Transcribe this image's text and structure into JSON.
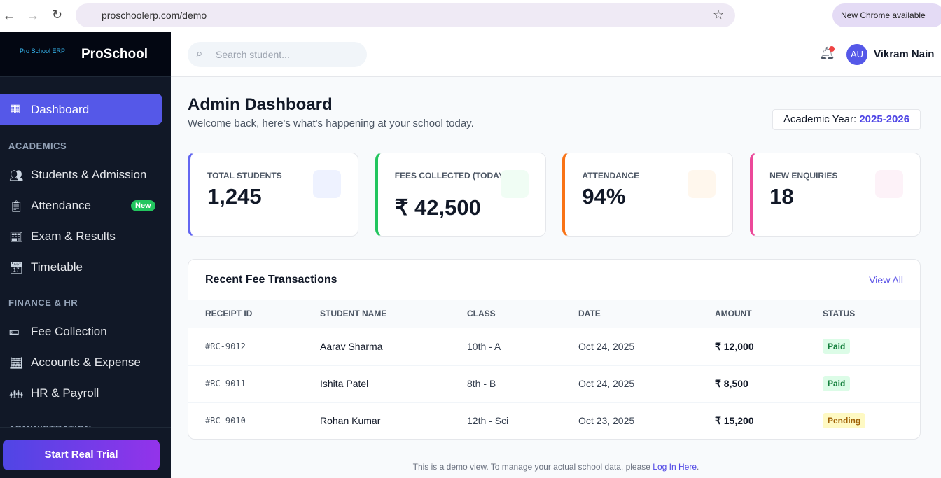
{
  "browser": {
    "url": "proschoolerp.com/demo",
    "update": "New Chrome available"
  },
  "sidebar": {
    "brand": "ProSchool",
    "logo": "Pro School ERP",
    "active": "Dashboard",
    "sections": [
      {
        "label": "ACADEMICS",
        "items": [
          {
            "label": "Students & Admission"
          },
          {
            "label": "Attendance",
            "badge": "New"
          },
          {
            "label": "Exam & Results"
          },
          {
            "label": "Timetable"
          }
        ]
      },
      {
        "label": "FINANCE & HR",
        "items": [
          {
            "label": "Fee Collection"
          },
          {
            "label": "Accounts & Expense"
          },
          {
            "label": "HR & Payroll"
          }
        ]
      },
      {
        "label": "ADMINISTRATION",
        "items": []
      }
    ],
    "cta": "Start Real Trial"
  },
  "topbar": {
    "search_placeholder": "Search student...",
    "initials": "AU",
    "user": "Vikram Nain"
  },
  "header": {
    "title": "Admin Dashboard",
    "subtitle": "Welcome back, here's what's happening at your school today.",
    "year_label": "Academic Year:",
    "year": "2025-2026"
  },
  "stats": [
    {
      "label": "TOTAL STUDENTS",
      "value": "1,245"
    },
    {
      "label": "FEES COLLECTED (TODAY)",
      "value": "₹ 42,500"
    },
    {
      "label": "ATTENDANCE",
      "value": "94%"
    },
    {
      "label": "NEW ENQUIRIES",
      "value": "18"
    }
  ],
  "table": {
    "title": "Recent Fee Transactions",
    "view_all": "View All",
    "columns": [
      "RECEIPT ID",
      "STUDENT NAME",
      "CLASS",
      "DATE",
      "AMOUNT",
      "STATUS"
    ],
    "rows": [
      [
        "#RC-9012",
        "Aarav Sharma",
        "10th - A",
        "Oct 24, 2025",
        "₹ 12,000",
        "Paid"
      ],
      [
        "#RC-9011",
        "Ishita Patel",
        "8th - B",
        "Oct 24, 2025",
        "₹ 8,500",
        "Paid"
      ],
      [
        "#RC-9010",
        "Rohan Kumar",
        "12th - Sci",
        "Oct 23, 2025",
        "₹ 15,200",
        "Pending"
      ]
    ]
  },
  "footer": {
    "text": "This is a demo view. To manage your actual school data, please",
    "link": "Log In Here",
    "end": "."
  }
}
